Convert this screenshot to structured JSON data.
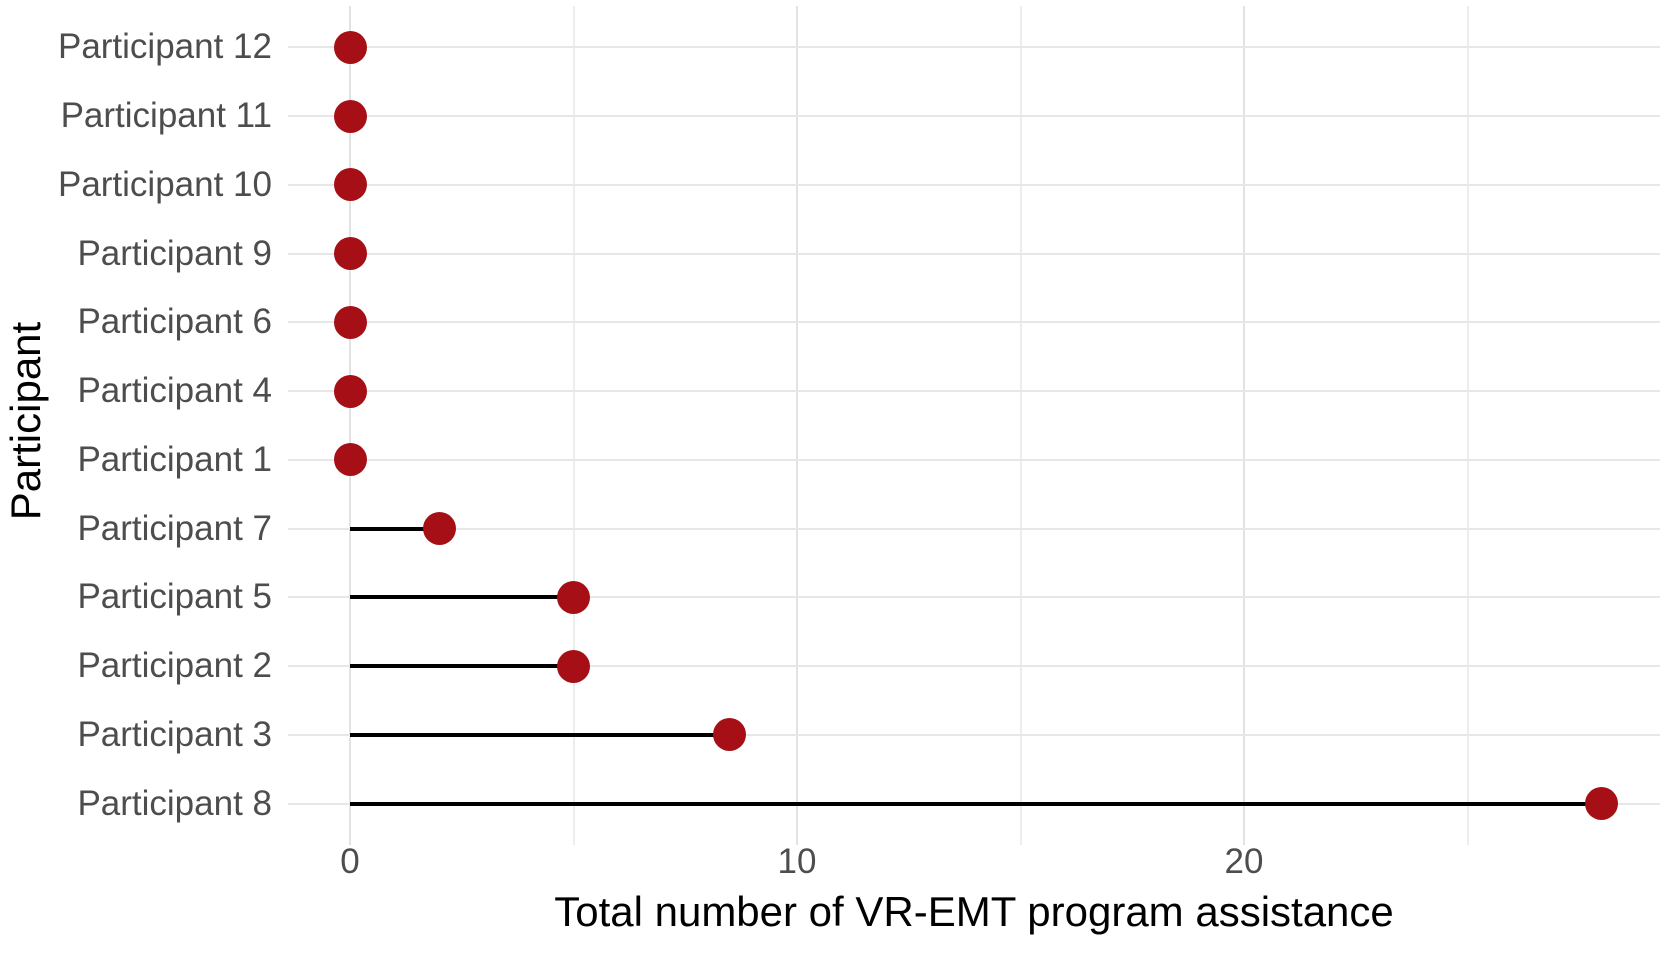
{
  "chart_data": {
    "type": "scatter",
    "variant": "horizontal-lollipop",
    "title": "",
    "categories": [
      "Participant 12",
      "Participant 11",
      "Participant 10",
      "Participant 9",
      "Participant 6",
      "Participant 4",
      "Participant 1",
      "Participant 7",
      "Participant 5",
      "Participant 2",
      "Participant 3",
      "Participant 8"
    ],
    "values": [
      0,
      0,
      0,
      0,
      0,
      0,
      0,
      2,
      5,
      5,
      8.5,
      28
    ],
    "xlabel": "Total number of VR-EMT program assistance",
    "ylabel": "Participant",
    "x_major_ticks": [
      0,
      10,
      20
    ],
    "x_minor_gridlines": [
      5,
      15,
      25
    ],
    "xlim": [
      -1.4,
      29.3
    ],
    "grid": true,
    "legend": "none",
    "colors": {
      "point": "#A50F15",
      "stem": "#000000",
      "grid_major": "#E3E3E3",
      "grid_minor": "#EDEDED",
      "tick_label": "#4D4D4D",
      "axis_title": "#000000",
      "background": "#FFFFFF"
    }
  }
}
